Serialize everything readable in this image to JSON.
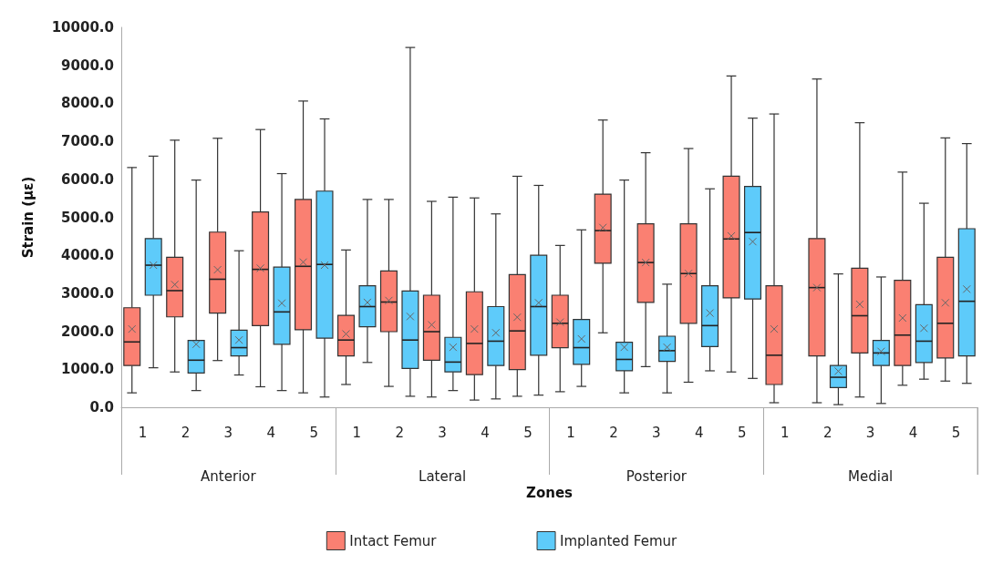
{
  "chart_data": {
    "type": "box",
    "xlabel": "Zones",
    "ylabel": "Strain (με)",
    "categories": [
      "1",
      "2",
      "3",
      "4",
      "5",
      "1",
      "2",
      "3",
      "4",
      "5",
      "1",
      "2",
      "3",
      "4",
      "5",
      "1",
      "2",
      "3",
      "4",
      "5"
    ],
    "annotations": [
      "Anterior",
      "Lateral",
      "Posterior",
      "Medial"
    ],
    "ylim": [
      0,
      10000
    ],
    "yticks": [
      {
        "value": 0,
        "label": "0.0"
      },
      {
        "value": 1000,
        "label": "1000.0"
      },
      {
        "value": 2000,
        "label": "2000.0"
      },
      {
        "value": 3000,
        "label": "3000.0"
      },
      {
        "value": 4000,
        "label": "4000.0"
      },
      {
        "value": 5000,
        "label": "5000.0"
      },
      {
        "value": 6000,
        "label": "6000.0"
      },
      {
        "value": 7000,
        "label": "7000.0"
      },
      {
        "value": 8000,
        "label": "8000.0"
      },
      {
        "value": 9000,
        "label": "9000.0"
      },
      {
        "value": 10000,
        "label": "10000.0"
      }
    ],
    "grid": false,
    "legend": "bottom",
    "series": [
      {
        "name": "Intact Femur",
        "color": "#fa8072",
        "boxes": [
          {
            "low": 380,
            "q1": 1100,
            "median": 1720,
            "q3": 2620,
            "high": 6310,
            "mean": 2060
          },
          {
            "low": 930,
            "q1": 2380,
            "median": 3070,
            "q3": 3950,
            "high": 7030,
            "mean": 3230
          },
          {
            "low": 1230,
            "q1": 2480,
            "median": 3370,
            "q3": 4610,
            "high": 7080,
            "mean": 3620
          },
          {
            "low": 540,
            "q1": 2150,
            "median": 3630,
            "q3": 5140,
            "high": 7310,
            "mean": 3660
          },
          {
            "low": 380,
            "q1": 2040,
            "median": 3710,
            "q3": 5470,
            "high": 8060,
            "mean": 3820
          },
          {
            "low": 600,
            "q1": 1350,
            "median": 1770,
            "q3": 2420,
            "high": 4140,
            "mean": 1930
          },
          {
            "low": 550,
            "q1": 1990,
            "median": 2770,
            "q3": 3590,
            "high": 5470,
            "mean": 2810
          },
          {
            "low": 270,
            "q1": 1240,
            "median": 1990,
            "q3": 2950,
            "high": 5420,
            "mean": 2170
          },
          {
            "low": 190,
            "q1": 860,
            "median": 1680,
            "q3": 3040,
            "high": 5510,
            "mean": 2060
          },
          {
            "low": 290,
            "q1": 990,
            "median": 2010,
            "q3": 3490,
            "high": 6080,
            "mean": 2370
          },
          {
            "low": 410,
            "q1": 1570,
            "median": 2210,
            "q3": 2950,
            "high": 4260,
            "mean": 2240
          },
          {
            "low": 1960,
            "q1": 3790,
            "median": 4650,
            "q3": 5610,
            "high": 7560,
            "mean": 4730
          },
          {
            "low": 1070,
            "q1": 2760,
            "median": 3810,
            "q3": 4830,
            "high": 6700,
            "mean": 3810
          },
          {
            "low": 660,
            "q1": 2210,
            "median": 3520,
            "q3": 4830,
            "high": 6810,
            "mean": 3520
          },
          {
            "low": 930,
            "q1": 2880,
            "median": 4430,
            "q3": 6080,
            "high": 8720,
            "mean": 4510
          },
          {
            "low": 120,
            "q1": 600,
            "median": 1370,
            "q3": 3200,
            "high": 7720,
            "mean": 2060
          },
          {
            "low": 120,
            "q1": 1350,
            "median": 3150,
            "q3": 4440,
            "high": 8640,
            "mean": 3150
          },
          {
            "low": 270,
            "q1": 1430,
            "median": 2410,
            "q3": 3660,
            "high": 7490,
            "mean": 2710
          },
          {
            "low": 580,
            "q1": 1100,
            "median": 1900,
            "q3": 3340,
            "high": 6190,
            "mean": 2350
          },
          {
            "low": 690,
            "q1": 1300,
            "median": 2210,
            "q3": 3950,
            "high": 7090,
            "mean": 2750
          }
        ]
      },
      {
        "name": "Implanted Femur",
        "color": "#5ecbfa",
        "boxes": [
          {
            "low": 1040,
            "q1": 2950,
            "median": 3740,
            "q3": 4440,
            "high": 6610,
            "mean": 3740
          },
          {
            "low": 440,
            "q1": 900,
            "median": 1240,
            "q3": 1760,
            "high": 5980,
            "mean": 1660
          },
          {
            "low": 850,
            "q1": 1350,
            "median": 1570,
            "q3": 2030,
            "high": 4120,
            "mean": 1770
          },
          {
            "low": 440,
            "q1": 1660,
            "median": 2510,
            "q3": 3690,
            "high": 6150,
            "mean": 2740
          },
          {
            "low": 270,
            "q1": 1820,
            "median": 3760,
            "q3": 5690,
            "high": 7590,
            "mean": 3740
          },
          {
            "low": 1180,
            "q1": 2120,
            "median": 2650,
            "q3": 3200,
            "high": 5470,
            "mean": 2760
          },
          {
            "low": 290,
            "q1": 1020,
            "median": 1770,
            "q3": 3060,
            "high": 9470,
            "mean": 2390
          },
          {
            "low": 440,
            "q1": 930,
            "median": 1190,
            "q3": 1840,
            "high": 5530,
            "mean": 1580
          },
          {
            "low": 220,
            "q1": 1100,
            "median": 1740,
            "q3": 2650,
            "high": 5090,
            "mean": 1960
          },
          {
            "low": 320,
            "q1": 1370,
            "median": 2650,
            "q3": 4000,
            "high": 5840,
            "mean": 2750
          },
          {
            "low": 550,
            "q1": 1130,
            "median": 1570,
            "q3": 2310,
            "high": 4670,
            "mean": 1800
          },
          {
            "low": 380,
            "q1": 960,
            "median": 1260,
            "q3": 1710,
            "high": 5980,
            "mean": 1580
          },
          {
            "low": 380,
            "q1": 1210,
            "median": 1490,
            "q3": 1870,
            "high": 3240,
            "mean": 1580
          },
          {
            "low": 960,
            "q1": 1600,
            "median": 2150,
            "q3": 3200,
            "high": 5750,
            "mean": 2480
          },
          {
            "low": 760,
            "q1": 2850,
            "median": 4600,
            "q3": 5810,
            "high": 7610,
            "mean": 4360
          },
          null,
          {
            "low": 70,
            "q1": 520,
            "median": 790,
            "q3": 1100,
            "high": 3510,
            "mean": 950
          },
          {
            "low": 100,
            "q1": 1100,
            "median": 1430,
            "q3": 1760,
            "high": 3430,
            "mean": 1470
          },
          {
            "low": 740,
            "q1": 1180,
            "median": 1740,
            "q3": 2700,
            "high": 5370,
            "mean": 2080
          },
          {
            "low": 630,
            "q1": 1350,
            "median": 2790,
            "q3": 4700,
            "high": 6940,
            "mean": 3110
          }
        ]
      }
    ]
  }
}
